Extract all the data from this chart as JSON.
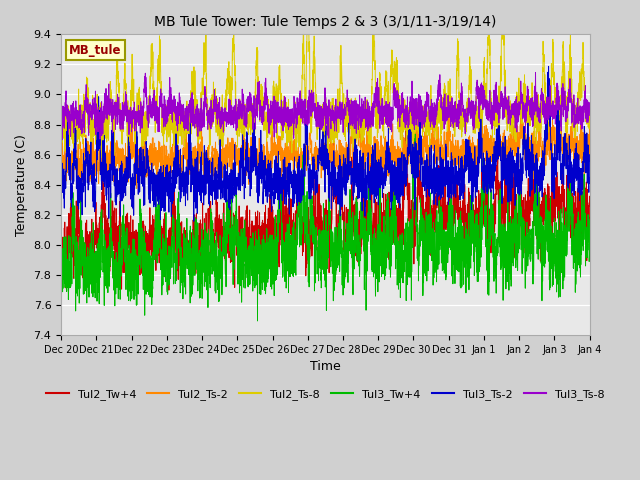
{
  "title": "MB Tule Tower: Tule Temps 2 & 3 (3/1/11-3/19/14)",
  "xlabel": "Time",
  "ylabel": "Temperature (C)",
  "ylim": [
    7.4,
    9.4
  ],
  "x_tick_labels": [
    "Dec 20",
    "Dec 21",
    "Dec 22",
    "Dec 23",
    "Dec 24",
    "Dec 25",
    "Dec 26",
    "Dec 27",
    "Dec 28",
    "Dec 29",
    "Dec 30",
    "Dec 31",
    "Jan 1",
    "Jan 2",
    "Jan 3",
    "Jan 4"
  ],
  "series": {
    "Tul2_Tw+4": {
      "color": "#cc0000",
      "base": 7.95,
      "noise_amp": 0.1,
      "spike_amp": 0.2,
      "trend": 0.018
    },
    "Tul2_Ts-2": {
      "color": "#ff8800",
      "base": 8.52,
      "noise_amp": 0.06,
      "spike_amp": 0.12,
      "trend": 0.008
    },
    "Tul2_Ts-8": {
      "color": "#ddcc00",
      "base": 8.78,
      "noise_amp": 0.07,
      "spike_amp": 0.38,
      "trend": 0.005
    },
    "Tul3_Tw+4": {
      "color": "#00bb00",
      "base": 7.82,
      "noise_amp": 0.12,
      "spike_amp": 0.3,
      "trend": 0.012
    },
    "Tul3_Ts-2": {
      "color": "#0000cc",
      "base": 8.38,
      "noise_amp": 0.08,
      "spike_amp": 0.22,
      "trend": 0.006
    },
    "Tul3_Ts-8": {
      "color": "#9900cc",
      "base": 8.84,
      "noise_amp": 0.05,
      "spike_amp": 0.12,
      "trend": 0.003
    }
  },
  "n_points": 3360,
  "annotation_text": "MB_tule",
  "annotation_color": "#990000",
  "annotation_bg": "#ffffcc",
  "annotation_border": "#999900"
}
